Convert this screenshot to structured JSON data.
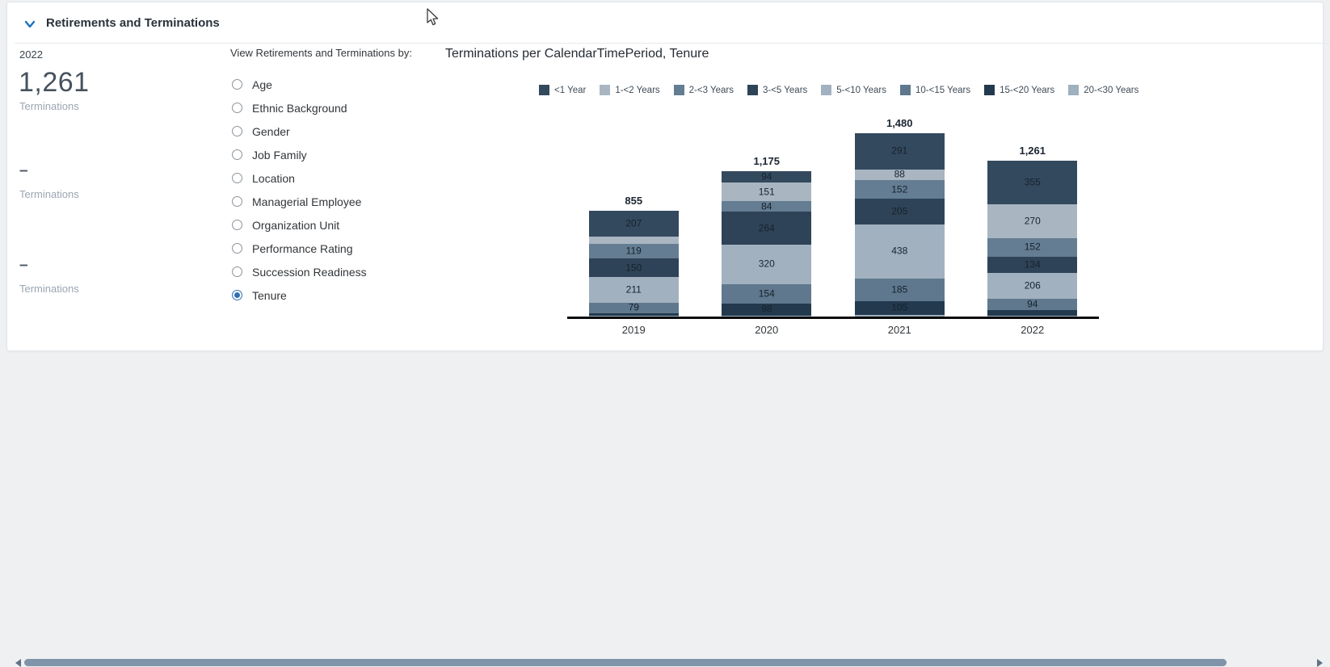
{
  "header": {
    "title": "Retirements and Terminations",
    "collapse_icon": "chevron-down-icon",
    "accent_color": "#1b72c0"
  },
  "kpis": {
    "year": "2022",
    "items": [
      {
        "value": "1,261",
        "label": "Terminations"
      },
      {
        "value": "–",
        "label": "Terminations"
      },
      {
        "value": "–",
        "label": "Terminations"
      }
    ]
  },
  "filter": {
    "heading": "View Retirements and Terminations by:",
    "options": [
      {
        "label": "Age",
        "selected": false
      },
      {
        "label": "Ethnic Background",
        "selected": false
      },
      {
        "label": "Gender",
        "selected": false
      },
      {
        "label": "Job Family",
        "selected": false
      },
      {
        "label": "Location",
        "selected": false
      },
      {
        "label": "Managerial Employee",
        "selected": false
      },
      {
        "label": "Organization Unit",
        "selected": false
      },
      {
        "label": "Performance Rating",
        "selected": false
      },
      {
        "label": "Succession Readiness",
        "selected": false
      },
      {
        "label": "Tenure",
        "selected": true
      }
    ],
    "selected_color": "#2f6fb2"
  },
  "chart_data": {
    "type": "bar",
    "stacked": true,
    "title": "Terminations per CalendarTimePeriod, Tenure",
    "xlabel": "CalendarTimePeriod",
    "ylabel": "Terminations",
    "legend_position": "top",
    "grid": false,
    "categories": [
      "2019",
      "2020",
      "2021",
      "2022"
    ],
    "totals": [
      "855",
      "1,175",
      "1,480",
      "1,261"
    ],
    "totals_numeric": [
      855,
      1175,
      1480,
      1261
    ],
    "series": [
      {
        "name": "<1 Year",
        "color": "#33495e",
        "values": [
          207,
          94,
          291,
          355
        ]
      },
      {
        "name": "1-<2 Years",
        "color": "#a9b6c2",
        "values": [
          60,
          151,
          88,
          270
        ]
      },
      {
        "name": "2-<3 Years",
        "color": "#647d92",
        "values": [
          119,
          84,
          152,
          152
        ]
      },
      {
        "name": "3-<5 Years",
        "color": "#2e4357",
        "values": [
          150,
          264,
          205,
          134
        ]
      },
      {
        "name": "5-<10 Years",
        "color": "#a1b1c0",
        "values": [
          211,
          320,
          438,
          206
        ]
      },
      {
        "name": "10-<15 Years",
        "color": "#5f788d",
        "values": [
          79,
          154,
          185,
          94
        ]
      },
      {
        "name": "15-<20 Years",
        "color": "#22394e",
        "values": [
          20,
          98,
          105,
          40
        ]
      },
      {
        "name": "20-<30 Years",
        "color": "#9fb0bf",
        "values": [
          9,
          10,
          16,
          10
        ]
      }
    ],
    "label_min_value": 70,
    "note": "Stack order top-to-bottom follows legend order; segment labels hidden for values below label_min_value (estimated from pixels).",
    "baseline_color": "#0b0b0b"
  },
  "scrollbar": {
    "orientation": "horizontal",
    "left_icon": "scroll-left-arrow-icon",
    "right_icon": "scroll-right-arrow-icon",
    "thumb_color": "#7f94a8"
  }
}
